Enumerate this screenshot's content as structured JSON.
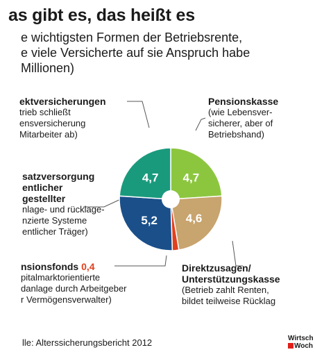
{
  "header": {
    "title": "as gibt es, das heißt es",
    "subtitle_lines": [
      "e wichtigsten Formen der Betriebsrente,",
      "e viele Versicherte auf sie Anspruch habe",
      " Millionen)"
    ]
  },
  "chart_data": {
    "type": "pie",
    "title": "as gibt es, das heißt es",
    "unit": "Millionen",
    "slices": [
      {
        "name": "Pensionskasse",
        "value": 4.7,
        "label": "4,7",
        "color": "#8cc63f"
      },
      {
        "name": "Direktzusagen/Unterstützungskasse",
        "value": 4.6,
        "label": "4,6",
        "color": "#c8a46e"
      },
      {
        "name": "Pensionsfonds",
        "value": 0.4,
        "label": "0,4",
        "color": "#e0401e"
      },
      {
        "name": "Zusatzversorgung öffentlicher Angestellter",
        "value": 5.2,
        "label": "5,2",
        "color": "#1a4f8a"
      },
      {
        "name": "Direktversicherungen",
        "value": 4.7,
        "label": "4,7",
        "color": "#1a9a7d"
      }
    ]
  },
  "callouts": {
    "direkt": {
      "title": "ektversicherungen",
      "lines": [
        "trieb schließt",
        "ensversicherung",
        "Mitarbeiter ab)"
      ]
    },
    "pensionskasse": {
      "title": "Pensionskasse",
      "lines": [
        "(wie Lebensver-",
        "sicherer, aber of",
        "Betriebshand)"
      ]
    },
    "zusatz": {
      "title_lines": [
        "satzversorgung",
        "entlicher",
        "gestellter"
      ],
      "lines": [
        "nlage- und rücklage-",
        "nzierte Systeme",
        "entlicher Träger)"
      ]
    },
    "fonds": {
      "title": "nsionsfonds",
      "value": "0,4",
      "lines": [
        "pitalmarktorientierte",
        "danlage durch Arbeitgeber",
        "r Vermögensverwalter)"
      ]
    },
    "direktzusagen": {
      "title_lines": [
        "Direktzusagen/",
        "Unterstützungskasse"
      ],
      "lines": [
        "(Betrieb zahlt Renten,",
        "bildet teilweise Rücklag"
      ]
    }
  },
  "footer": {
    "source": "lle: Alterssicherungsbericht 2012",
    "logo_lines": [
      "Wirtsch",
      "Woch"
    ]
  }
}
